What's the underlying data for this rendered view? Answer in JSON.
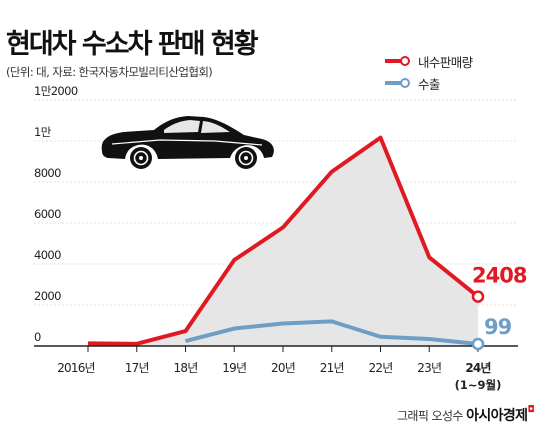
{
  "title": "현대차 수소차 판매 현황",
  "subtitle": "(단위: 대, 자료: 한국자동차모빌리티산업협회)",
  "colors": {
    "domestic": "#e01a22",
    "export": "#6e9ec6",
    "fill": "#e6e6e6",
    "axis": "#222222"
  },
  "chart_data": {
    "type": "line",
    "categories": [
      "2016년",
      "17년",
      "18년",
      "19년",
      "20년",
      "21년",
      "22년",
      "23년",
      "24년"
    ],
    "category_note": "(1~9월)",
    "y_tick_labels": [
      "0",
      "2000",
      "4000",
      "6000",
      "8000",
      "1만",
      "1만2000"
    ],
    "ylim": [
      0,
      12000
    ],
    "series": [
      {
        "name": "내수판매량",
        "values": [
          128,
          105,
          727,
          4194,
          5786,
          8502,
          10164,
          4328,
          2408
        ],
        "end_label": "2408"
      },
      {
        "name": "수출",
        "values": [
          null,
          null,
          240,
          852,
          1100,
          1200,
          450,
          340,
          99
        ],
        "end_label": "99"
      }
    ]
  },
  "credit": {
    "text": "그래픽 오성수",
    "brand": "아시아경제",
    "mark": "◘"
  }
}
